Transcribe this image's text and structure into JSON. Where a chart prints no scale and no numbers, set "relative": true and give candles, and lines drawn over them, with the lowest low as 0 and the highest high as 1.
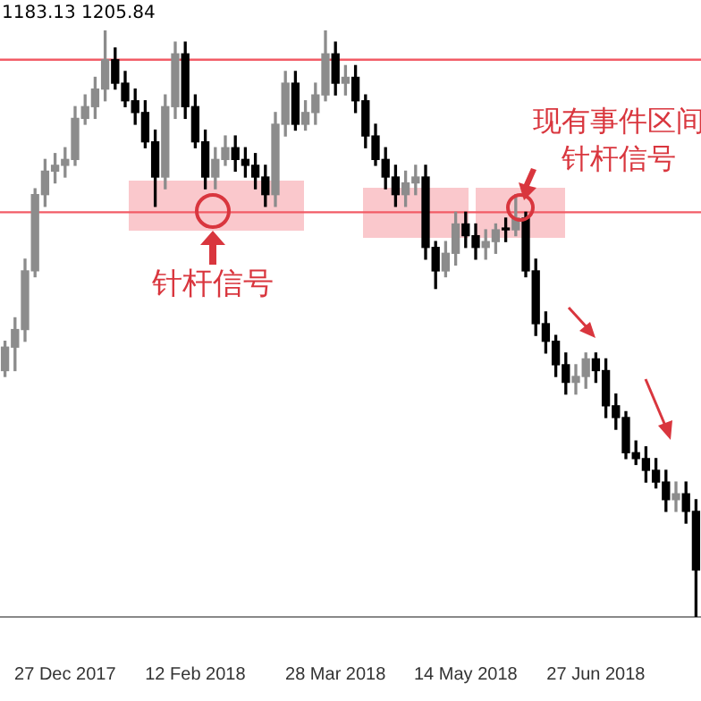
{
  "chart_data": {
    "type": "candlestick",
    "relative": true,
    "grid": false,
    "legend": false,
    "categories": [
      null,
      null,
      null,
      null,
      null,
      null,
      "27 Dec 2017",
      null,
      null,
      null,
      null,
      null,
      null,
      null,
      null,
      null,
      null,
      null,
      null,
      "12 Feb 2018",
      null,
      null,
      null,
      null,
      null,
      null,
      null,
      null,
      null,
      null,
      null,
      null,
      null,
      "28 Mar 2018",
      null,
      null,
      null,
      null,
      null,
      null,
      null,
      null,
      null,
      null,
      null,
      null,
      "14 May 2018",
      null,
      null,
      null,
      null,
      null,
      null,
      null,
      null,
      null,
      null,
      null,
      null,
      "27 Jun 2018",
      null,
      null,
      null,
      null,
      null,
      null,
      null,
      null,
      null,
      null
    ],
    "ohlc": [
      [
        0.42,
        0.47,
        0.41,
        0.46
      ],
      [
        0.46,
        0.51,
        0.42,
        0.49
      ],
      [
        0.49,
        0.61,
        0.47,
        0.59
      ],
      [
        0.59,
        0.73,
        0.58,
        0.72
      ],
      [
        0.72,
        0.78,
        0.7,
        0.76
      ],
      [
        0.76,
        0.79,
        0.74,
        0.77
      ],
      [
        0.77,
        0.8,
        0.75,
        0.78
      ],
      [
        0.78,
        0.87,
        0.77,
        0.85
      ],
      [
        0.85,
        0.89,
        0.84,
        0.87
      ],
      [
        0.87,
        0.92,
        0.85,
        0.9
      ],
      [
        0.9,
        1.0,
        0.88,
        0.95
      ],
      [
        0.95,
        0.97,
        0.9,
        0.91
      ],
      [
        0.91,
        0.93,
        0.87,
        0.88
      ],
      [
        0.88,
        0.9,
        0.84,
        0.86
      ],
      [
        0.86,
        0.88,
        0.8,
        0.81
      ],
      [
        0.81,
        0.83,
        0.7,
        0.75
      ],
      [
        0.75,
        0.89,
        0.73,
        0.87
      ],
      [
        0.87,
        0.98,
        0.85,
        0.96
      ],
      [
        0.96,
        0.98,
        0.85,
        0.87
      ],
      [
        0.87,
        0.89,
        0.8,
        0.81
      ],
      [
        0.81,
        0.83,
        0.73,
        0.75
      ],
      [
        0.75,
        0.8,
        0.73,
        0.78
      ],
      [
        0.78,
        0.82,
        0.77,
        0.8
      ],
      [
        0.8,
        0.82,
        0.76,
        0.78
      ],
      [
        0.78,
        0.8,
        0.75,
        0.77
      ],
      [
        0.77,
        0.79,
        0.73,
        0.75
      ],
      [
        0.75,
        0.77,
        0.7,
        0.72
      ],
      [
        0.72,
        0.86,
        0.7,
        0.84
      ],
      [
        0.84,
        0.93,
        0.82,
        0.91
      ],
      [
        0.91,
        0.93,
        0.83,
        0.84
      ],
      [
        0.84,
        0.88,
        0.83,
        0.86
      ],
      [
        0.86,
        0.91,
        0.84,
        0.89
      ],
      [
        0.89,
        1.0,
        0.88,
        0.96
      ],
      [
        0.96,
        0.98,
        0.89,
        0.91
      ],
      [
        0.91,
        0.94,
        0.89,
        0.92
      ],
      [
        0.92,
        0.94,
        0.86,
        0.88
      ],
      [
        0.88,
        0.89,
        0.8,
        0.82
      ],
      [
        0.82,
        0.84,
        0.77,
        0.78
      ],
      [
        0.78,
        0.8,
        0.73,
        0.75
      ],
      [
        0.75,
        0.77,
        0.7,
        0.72
      ],
      [
        0.72,
        0.76,
        0.7,
        0.74
      ],
      [
        0.74,
        0.77,
        0.72,
        0.75
      ],
      [
        0.75,
        0.77,
        0.61,
        0.63
      ],
      [
        0.63,
        0.64,
        0.56,
        0.59
      ],
      [
        0.59,
        0.64,
        0.58,
        0.62
      ],
      [
        0.62,
        0.69,
        0.6,
        0.67
      ],
      [
        0.67,
        0.69,
        0.63,
        0.65
      ],
      [
        0.65,
        0.67,
        0.61,
        0.63
      ],
      [
        0.63,
        0.66,
        0.61,
        0.64
      ],
      [
        0.64,
        0.67,
        0.62,
        0.66
      ],
      [
        0.66,
        0.68,
        0.64,
        0.66
      ],
      [
        0.66,
        0.72,
        0.65,
        0.68
      ],
      [
        0.68,
        0.69,
        0.58,
        0.59
      ],
      [
        0.59,
        0.61,
        0.48,
        0.5
      ],
      [
        0.5,
        0.52,
        0.45,
        0.47
      ],
      [
        0.47,
        0.48,
        0.41,
        0.43
      ],
      [
        0.43,
        0.45,
        0.38,
        0.4
      ],
      [
        0.4,
        0.43,
        0.38,
        0.41
      ],
      [
        0.41,
        0.45,
        0.39,
        0.44
      ],
      [
        0.44,
        0.45,
        0.4,
        0.42
      ],
      [
        0.42,
        0.44,
        0.34,
        0.36
      ],
      [
        0.36,
        0.38,
        0.32,
        0.34
      ],
      [
        0.34,
        0.35,
        0.27,
        0.28
      ],
      [
        0.28,
        0.3,
        0.26,
        0.27
      ],
      [
        0.27,
        0.29,
        0.23,
        0.25
      ],
      [
        0.25,
        0.27,
        0.22,
        0.23
      ],
      [
        0.23,
        0.25,
        0.18,
        0.2
      ],
      [
        0.2,
        0.23,
        0.18,
        0.21
      ],
      [
        0.21,
        0.23,
        0.16,
        0.18
      ],
      [
        0.18,
        0.2,
        0.0,
        0.08
      ]
    ],
    "ref_lines": [
      {
        "axis": "y",
        "value": 0.95,
        "color": "#f25c66"
      },
      {
        "axis": "y",
        "value": 0.69,
        "color": "#f25c66"
      }
    ],
    "annotations": [
      "1183.13 1205.84",
      "针杆信号",
      "现有事件区间针杆信号"
    ]
  }
}
